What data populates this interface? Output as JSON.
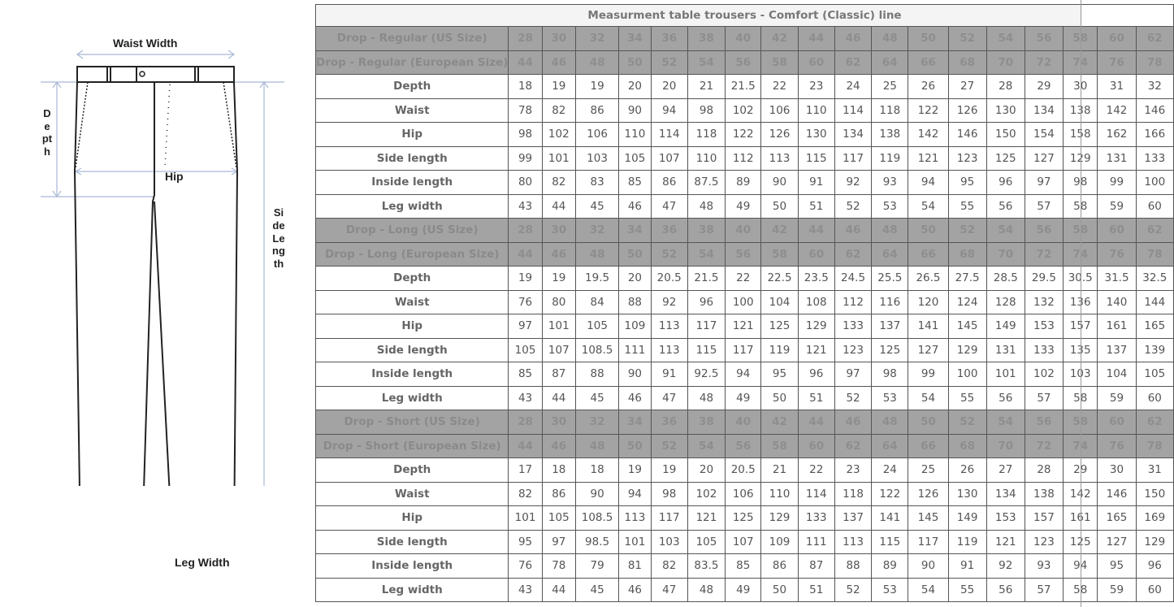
{
  "diagram": {
    "labels": {
      "waist_width": "Waist Width",
      "depth": "Depth",
      "hip": "Hip",
      "side_length": "Side Length",
      "leg_width": "Leg Width"
    }
  },
  "table": {
    "title": "Measurment table trousers - Comfort (Classic) line",
    "sections": [
      {
        "header_rows": [
          {
            "label": "Drop - Regular (US Size)",
            "values": [
              "28",
              "30",
              "32",
              "34",
              "36",
              "38",
              "40",
              "42",
              "44",
              "46",
              "48",
              "50",
              "52",
              "54",
              "56",
              "58",
              "60",
              "62"
            ]
          },
          {
            "label": "Drop - Regular (European Size)",
            "values": [
              "44",
              "46",
              "48",
              "50",
              "52",
              "54",
              "56",
              "58",
              "60",
              "62",
              "64",
              "66",
              "68",
              "70",
              "72",
              "74",
              "76",
              "78"
            ]
          }
        ],
        "rows": [
          {
            "label": "Depth",
            "values": [
              "18",
              "19",
              "19",
              "20",
              "20",
              "21",
              "21.5",
              "22",
              "23",
              "24",
              "25",
              "26",
              "27",
              "28",
              "29",
              "30",
              "31",
              "32"
            ]
          },
          {
            "label": "Waist",
            "values": [
              "78",
              "82",
              "86",
              "90",
              "94",
              "98",
              "102",
              "106",
              "110",
              "114",
              "118",
              "122",
              "126",
              "130",
              "134",
              "138",
              "142",
              "146"
            ]
          },
          {
            "label": "Hip",
            "values": [
              "98",
              "102",
              "106",
              "110",
              "114",
              "118",
              "122",
              "126",
              "130",
              "134",
              "138",
              "142",
              "146",
              "150",
              "154",
              "158",
              "162",
              "166"
            ]
          },
          {
            "label": "Side length",
            "values": [
              "99",
              "101",
              "103",
              "105",
              "107",
              "110",
              "112",
              "113",
              "115",
              "117",
              "119",
              "121",
              "123",
              "125",
              "127",
              "129",
              "131",
              "133"
            ]
          },
          {
            "label": "Inside length",
            "values": [
              "80",
              "82",
              "83",
              "85",
              "86",
              "87.5",
              "89",
              "90",
              "91",
              "92",
              "93",
              "94",
              "95",
              "96",
              "97",
              "98",
              "99",
              "100"
            ]
          },
          {
            "label": "Leg width",
            "values": [
              "43",
              "44",
              "45",
              "46",
              "47",
              "48",
              "49",
              "50",
              "51",
              "52",
              "53",
              "54",
              "55",
              "56",
              "57",
              "58",
              "59",
              "60"
            ]
          }
        ]
      },
      {
        "header_rows": [
          {
            "label": "Drop - Long (US Size)",
            "values": [
              "28",
              "30",
              "32",
              "34",
              "36",
              "38",
              "40",
              "42",
              "44",
              "46",
              "48",
              "50",
              "52",
              "54",
              "56",
              "58",
              "60",
              "62"
            ]
          },
          {
            "label": "Drop - Long (European Size)",
            "values": [
              "44",
              "46",
              "48",
              "50",
              "52",
              "54",
              "56",
              "58",
              "60",
              "62",
              "64",
              "66",
              "68",
              "70",
              "72",
              "74",
              "76",
              "78"
            ]
          }
        ],
        "rows": [
          {
            "label": "Depth",
            "values": [
              "19",
              "19",
              "19.5",
              "20",
              "20.5",
              "21.5",
              "22",
              "22.5",
              "23.5",
              "24.5",
              "25.5",
              "26.5",
              "27.5",
              "28.5",
              "29.5",
              "30.5",
              "31.5",
              "32.5"
            ]
          },
          {
            "label": "Waist",
            "values": [
              "76",
              "80",
              "84",
              "88",
              "92",
              "96",
              "100",
              "104",
              "108",
              "112",
              "116",
              "120",
              "124",
              "128",
              "132",
              "136",
              "140",
              "144"
            ]
          },
          {
            "label": "Hip",
            "values": [
              "97",
              "101",
              "105",
              "109",
              "113",
              "117",
              "121",
              "125",
              "129",
              "133",
              "137",
              "141",
              "145",
              "149",
              "153",
              "157",
              "161",
              "165"
            ]
          },
          {
            "label": "Side length",
            "values": [
              "105",
              "107",
              "108.5",
              "111",
              "113",
              "115",
              "117",
              "119",
              "121",
              "123",
              "125",
              "127",
              "129",
              "131",
              "133",
              "135",
              "137",
              "139"
            ]
          },
          {
            "label": "Inside length",
            "values": [
              "85",
              "87",
              "88",
              "90",
              "91",
              "92.5",
              "94",
              "95",
              "96",
              "97",
              "98",
              "99",
              "100",
              "101",
              "102",
              "103",
              "104",
              "105"
            ]
          },
          {
            "label": "Leg width",
            "values": [
              "43",
              "44",
              "45",
              "46",
              "47",
              "48",
              "49",
              "50",
              "51",
              "52",
              "53",
              "54",
              "55",
              "56",
              "57",
              "58",
              "59",
              "60"
            ]
          }
        ]
      },
      {
        "header_rows": [
          {
            "label": "Drop - Short (US Size)",
            "values": [
              "28",
              "30",
              "32",
              "34",
              "36",
              "38",
              "40",
              "42",
              "44",
              "46",
              "48",
              "50",
              "52",
              "54",
              "56",
              "58",
              "60",
              "62"
            ]
          },
          {
            "label": "Drop - Short (European Size)",
            "values": [
              "44",
              "46",
              "48",
              "50",
              "52",
              "54",
              "56",
              "58",
              "60",
              "62",
              "64",
              "66",
              "68",
              "70",
              "72",
              "74",
              "76",
              "78"
            ]
          }
        ],
        "rows": [
          {
            "label": "Depth",
            "values": [
              "17",
              "18",
              "18",
              "19",
              "19",
              "20",
              "20.5",
              "21",
              "22",
              "23",
              "24",
              "25",
              "26",
              "27",
              "28",
              "29",
              "30",
              "31"
            ]
          },
          {
            "label": "Waist",
            "values": [
              "82",
              "86",
              "90",
              "94",
              "98",
              "102",
              "106",
              "110",
              "114",
              "118",
              "122",
              "126",
              "130",
              "134",
              "138",
              "142",
              "146",
              "150"
            ]
          },
          {
            "label": "Hip",
            "values": [
              "101",
              "105",
              "108.5",
              "113",
              "117",
              "121",
              "125",
              "129",
              "133",
              "137",
              "141",
              "145",
              "149",
              "153",
              "157",
              "161",
              "165",
              "169"
            ]
          },
          {
            "label": "Side length",
            "values": [
              "95",
              "97",
              "98.5",
              "101",
              "103",
              "105",
              "107",
              "109",
              "111",
              "113",
              "115",
              "117",
              "119",
              "121",
              "123",
              "125",
              "127",
              "129"
            ]
          },
          {
            "label": "Inside length",
            "values": [
              "76",
              "78",
              "79",
              "81",
              "82",
              "83.5",
              "85",
              "86",
              "87",
              "88",
              "89",
              "90",
              "91",
              "92",
              "93",
              "94",
              "95",
              "96"
            ]
          },
          {
            "label": "Leg width",
            "values": [
              "43",
              "44",
              "45",
              "46",
              "47",
              "48",
              "49",
              "50",
              "51",
              "52",
              "53",
              "54",
              "55",
              "56",
              "57",
              "58",
              "59",
              "60"
            ]
          }
        ]
      }
    ]
  }
}
